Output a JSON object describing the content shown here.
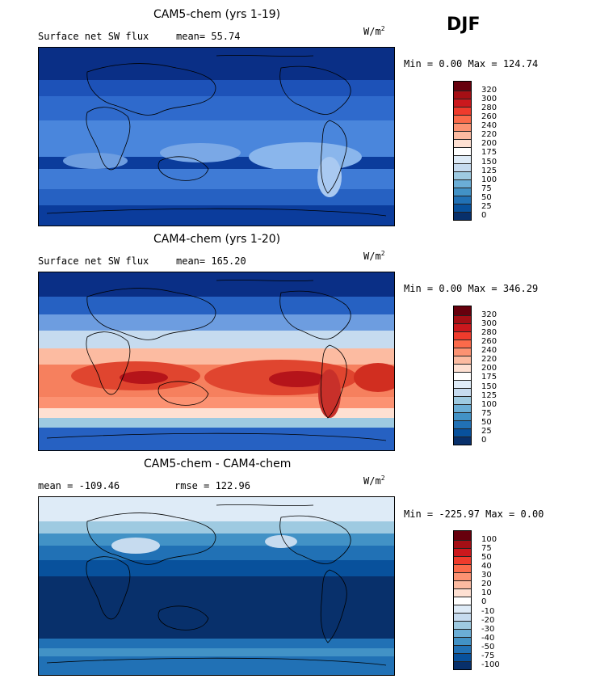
{
  "season": "DJF",
  "units_base": "W/m",
  "units_exp": "2",
  "panels": [
    {
      "title": "CAM5-chem (yrs 1-19)",
      "subtitle_left": "Surface net SW flux",
      "subtitle_mid": "mean=  55.74",
      "minmax": "Min =   0.00 Max = 124.74",
      "ticks": [
        "320",
        "300",
        "280",
        "260",
        "240",
        "220",
        "200",
        "175",
        "150",
        "125",
        "100",
        "75",
        "50",
        "25",
        "0"
      ],
      "colors": [
        "#67000d",
        "#a50f15",
        "#cb181d",
        "#ef3b2c",
        "#fb6a4a",
        "#fc9272",
        "#fcbba1",
        "#fee0d2",
        "#ffffff",
        "#deebf7",
        "#c6dbef",
        "#9ecae1",
        "#6baed6",
        "#4292c6",
        "#2171b5",
        "#08519c",
        "#08306b"
      ]
    },
    {
      "title": "CAM4-chem (yrs 1-20)",
      "subtitle_left": "Surface net SW flux",
      "subtitle_mid": "mean= 165.20",
      "minmax": "Min =   0.00 Max = 346.29",
      "ticks": [
        "320",
        "300",
        "280",
        "260",
        "240",
        "220",
        "200",
        "175",
        "150",
        "125",
        "100",
        "75",
        "50",
        "25",
        "0"
      ],
      "colors": [
        "#67000d",
        "#a50f15",
        "#cb181d",
        "#ef3b2c",
        "#fb6a4a",
        "#fc9272",
        "#fcbba1",
        "#fee0d2",
        "#ffffff",
        "#deebf7",
        "#c6dbef",
        "#9ecae1",
        "#6baed6",
        "#4292c6",
        "#2171b5",
        "#08519c",
        "#08306b"
      ]
    },
    {
      "title": "CAM5-chem - CAM4-chem",
      "subtitle_left": "mean = -109.46",
      "subtitle_mid": "rmse = 122.96",
      "minmax": "Min = -225.97 Max =   0.00",
      "ticks": [
        "100",
        "75",
        "50",
        "40",
        "30",
        "20",
        "10",
        "0",
        "-10",
        "-20",
        "-30",
        "-40",
        "-50",
        "-75",
        "-100"
      ],
      "colors": [
        "#67000d",
        "#a50f15",
        "#cb181d",
        "#ef3b2c",
        "#fb6a4a",
        "#fc9272",
        "#fcbba1",
        "#fee0d2",
        "#ffffff",
        "#deebf7",
        "#c6dbef",
        "#9ecae1",
        "#6baed6",
        "#4292c6",
        "#2171b5",
        "#08519c",
        "#08306b"
      ]
    }
  ]
}
